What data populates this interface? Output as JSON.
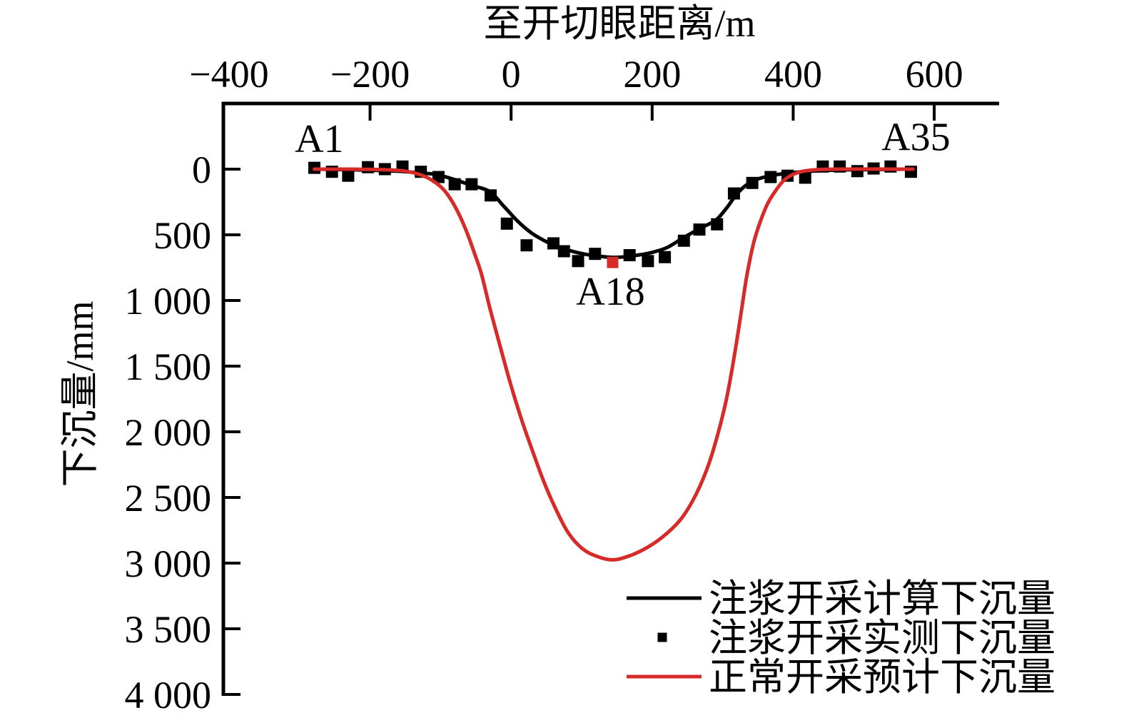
{
  "colors": {
    "background": "#ffffff",
    "axis": "#000000",
    "black_series": "#000000",
    "red_series": "#d62b28"
  },
  "chart_data": {
    "type": "line",
    "title": "",
    "xlabel": "至开切眼距离/m",
    "ylabel": "下沉量/mm",
    "grid": false,
    "x_axis": {
      "position": "top",
      "range": [
        -408,
        692
      ],
      "tick_values": [
        -400,
        -200,
        0,
        200,
        400,
        600
      ],
      "tick_labels": [
        "−400",
        "−200",
        "0",
        "200",
        "400",
        "600"
      ],
      "ticks_with_marks": [
        -200,
        0,
        200,
        400,
        600
      ]
    },
    "y_axis": {
      "position": "left",
      "range": [
        -500,
        4000
      ],
      "inverted": true,
      "tick_values": [
        0,
        500,
        1000,
        1500,
        2000,
        2500,
        3000,
        3500,
        4000
      ],
      "tick_labels": [
        "0",
        "500",
        "1 000",
        "1 500",
        "2 000",
        "2 500",
        "3 000",
        "3 500",
        "4 000"
      ]
    },
    "legend": {
      "position": "inside-bottom-right"
    },
    "annotations": [
      {
        "id": "a1",
        "text": "A1",
        "x": -272,
        "y": -130,
        "color": "#000000"
      },
      {
        "id": "a35",
        "text": "A35",
        "x": 574,
        "y": -145,
        "color": "#000000"
      },
      {
        "id": "a18",
        "text": "A18",
        "x": 141,
        "y": 1033,
        "color": "#d62b28"
      }
    ],
    "series": [
      {
        "id": "calculated",
        "name": "注浆开采计算下沉量",
        "type": "line",
        "color": "#000000",
        "stroke_width": 5,
        "points": [
          [
            -279,
            0
          ],
          [
            -240,
            3
          ],
          [
            -200,
            8
          ],
          [
            -160,
            16
          ],
          [
            -130,
            28
          ],
          [
            -105,
            42
          ],
          [
            -80,
            80
          ],
          [
            -55,
            125
          ],
          [
            -30,
            172
          ],
          [
            -10,
            285
          ],
          [
            10,
            400
          ],
          [
            30,
            490
          ],
          [
            55,
            565
          ],
          [
            80,
            615
          ],
          [
            105,
            648
          ],
          [
            130,
            666
          ],
          [
            148,
            672
          ],
          [
            170,
            662
          ],
          [
            195,
            640
          ],
          [
            220,
            600
          ],
          [
            245,
            520
          ],
          [
            270,
            445
          ],
          [
            290,
            390
          ],
          [
            305,
            300
          ],
          [
            320,
            190
          ],
          [
            335,
            115
          ],
          [
            350,
            75
          ],
          [
            370,
            48
          ],
          [
            390,
            32
          ],
          [
            410,
            22
          ],
          [
            430,
            14
          ],
          [
            455,
            8
          ],
          [
            480,
            5
          ],
          [
            510,
            3
          ],
          [
            540,
            1
          ],
          [
            570,
            0
          ]
        ]
      },
      {
        "id": "measured",
        "name": "注浆开采实测下沉量",
        "type": "scatter",
        "marker": "square",
        "marker_size": 17,
        "color": "#000000",
        "points": [
          [
            -279,
            -10
          ],
          [
            -254,
            20
          ],
          [
            -231,
            50
          ],
          [
            -203,
            -15
          ],
          [
            -179,
            0
          ],
          [
            -154,
            -20
          ],
          [
            -128,
            20
          ],
          [
            -103,
            60
          ],
          [
            -80,
            115
          ],
          [
            -56,
            115
          ],
          [
            -29,
            200
          ],
          [
            -6,
            415
          ],
          [
            22,
            580
          ],
          [
            60,
            565
          ],
          [
            75,
            625
          ],
          [
            95,
            700
          ],
          [
            119,
            645
          ],
          [
            168,
            655
          ],
          [
            194,
            700
          ],
          [
            218,
            670
          ],
          [
            245,
            545
          ],
          [
            267,
            460
          ],
          [
            292,
            420
          ],
          [
            316,
            185
          ],
          [
            342,
            105
          ],
          [
            368,
            60
          ],
          [
            392,
            50
          ],
          [
            417,
            65
          ],
          [
            442,
            -20
          ],
          [
            466,
            -20
          ],
          [
            491,
            15
          ],
          [
            514,
            -5
          ],
          [
            538,
            -20
          ],
          [
            567,
            20
          ]
        ]
      },
      {
        "id": "predicted-normal",
        "name": "正常开采预计下沉量",
        "type": "line",
        "color": "#d62b28",
        "stroke_width": 5,
        "points": [
          [
            -279,
            0
          ],
          [
            -230,
            0
          ],
          [
            -195,
            2
          ],
          [
            -170,
            6
          ],
          [
            -150,
            15
          ],
          [
            -130,
            40
          ],
          [
            -112,
            85
          ],
          [
            -95,
            160
          ],
          [
            -80,
            280
          ],
          [
            -65,
            450
          ],
          [
            -52,
            640
          ],
          [
            -42,
            800
          ],
          [
            -30,
            1060
          ],
          [
            -15,
            1360
          ],
          [
            0,
            1650
          ],
          [
            15,
            1910
          ],
          [
            30,
            2140
          ],
          [
            45,
            2360
          ],
          [
            60,
            2550
          ],
          [
            80,
            2760
          ],
          [
            100,
            2885
          ],
          [
            120,
            2945
          ],
          [
            143,
            2975
          ],
          [
            165,
            2950
          ],
          [
            190,
            2890
          ],
          [
            215,
            2800
          ],
          [
            240,
            2670
          ],
          [
            260,
            2500
          ],
          [
            278,
            2280
          ],
          [
            292,
            2040
          ],
          [
            305,
            1760
          ],
          [
            316,
            1440
          ],
          [
            326,
            1100
          ],
          [
            334,
            820
          ],
          [
            344,
            560
          ],
          [
            354,
            390
          ],
          [
            364,
            260
          ],
          [
            375,
            165
          ],
          [
            386,
            90
          ],
          [
            398,
            45
          ],
          [
            412,
            18
          ],
          [
            432,
            5
          ],
          [
            458,
            0
          ],
          [
            570,
            0
          ]
        ]
      },
      {
        "id": "measured-a18",
        "name": "A18",
        "type": "scatter",
        "marker": "square",
        "marker_size": 16,
        "color": "#d62b28",
        "in_legend": false,
        "points": [
          [
            144,
            710
          ]
        ]
      }
    ]
  }
}
